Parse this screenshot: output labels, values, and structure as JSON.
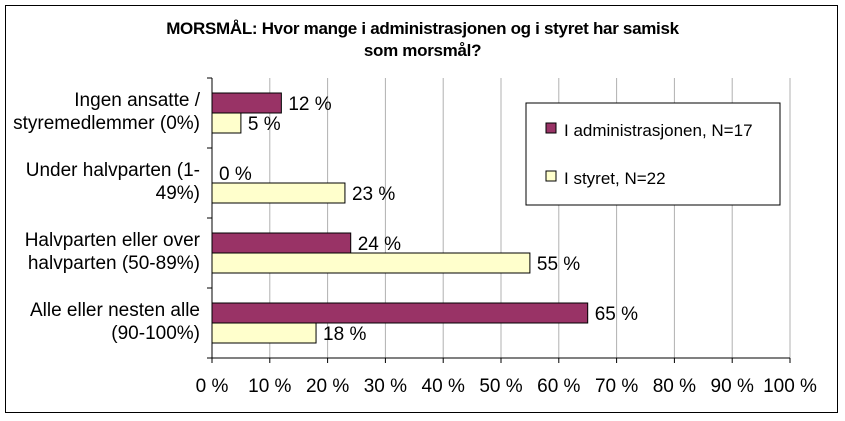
{
  "chart_data": {
    "type": "bar",
    "orientation": "horizontal",
    "title_line1": "MORSMÅL:  Hvor mange i administrasjonen og i styret har samisk",
    "title_line2": "som morsmål?",
    "categories": [
      [
        "Ingen ansatte /",
        "styremedlemmer (0%)"
      ],
      [
        "Under halvparten (1-",
        "49%)"
      ],
      [
        "Halvparten eller over",
        "halvparten (50-89%)"
      ],
      [
        "Alle eller nesten alle",
        "(90-100%)"
      ]
    ],
    "series": [
      {
        "name": "I administrasjonen, N=17",
        "color": "#993366",
        "values": [
          12,
          0,
          24,
          65
        ],
        "labels": [
          "12 %",
          "0 %",
          "24 %",
          "65 %"
        ]
      },
      {
        "name": "I styret, N=22",
        "color": "#FFFFCC",
        "values": [
          5,
          23,
          55,
          18
        ],
        "labels": [
          "5 %",
          "23 %",
          "55 %",
          "18 %"
        ]
      }
    ],
    "xlim": [
      0,
      100
    ],
    "xticks": [
      "0 %",
      "10 %",
      "20 %",
      "30 %",
      "40 %",
      "50 %",
      "60 %",
      "70 %",
      "80 %",
      "90 %",
      "100 %"
    ],
    "grid": true,
    "legend_position": "right"
  }
}
